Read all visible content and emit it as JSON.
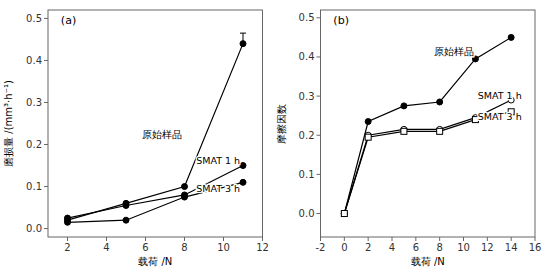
{
  "chart_data": [
    {
      "type": "line",
      "title": "(a)",
      "xlabel": "载荷 /N",
      "ylabel": "磨损量 /(mm³·h⁻¹)",
      "xlim": [
        1,
        12
      ],
      "ylim": [
        -0.02,
        0.52
      ],
      "xticks": [
        2,
        4,
        6,
        8,
        10,
        12
      ],
      "yticks": [
        {
          "value": 0.0,
          "label": "0.0"
        },
        0.1,
        0.2,
        0.3,
        0.4,
        0.5
      ],
      "grid": false,
      "x": [
        2,
        5,
        8,
        11
      ],
      "series": [
        {
          "color": "#000000",
          "marker": "circle",
          "values": [
            0.02,
            0.06,
            0.1,
            0.44
          ],
          "errors_up": [
            null,
            null,
            null,
            0.025
          ]
        },
        {
          "color": "#000000",
          "marker": "circle",
          "values": [
            0.025,
            0.055,
            0.08,
            0.15
          ]
        },
        {
          "color": "#000000",
          "marker": "circle",
          "values": [
            0.015,
            0.02,
            0.075,
            0.11
          ]
        }
      ],
      "annotations": [
        {
          "text": "原始样品",
          "x": 5.8,
          "y": 0.225
        },
        {
          "text": "SMAT 1 h",
          "x": 8.6,
          "y": 0.162
        },
        {
          "text": "SMAT 3 h",
          "x": 8.6,
          "y": 0.095
        }
      ]
    },
    {
      "type": "line",
      "title": "(b)",
      "xlabel": "载荷 /N",
      "ylabel": "摩擦因数",
      "xlim": [
        -2,
        16
      ],
      "ylim": [
        -0.06,
        0.52
      ],
      "xticks": [
        -2,
        0,
        2,
        4,
        6,
        8,
        10,
        12,
        14,
        16
      ],
      "yticks": [
        {
          "value": 0.0,
          "label": "0.0"
        },
        0.1,
        0.2,
        0.3,
        0.4,
        0.5
      ],
      "grid": false,
      "x": [
        0,
        2,
        5,
        8,
        11,
        14
      ],
      "series": [
        {
          "color": "#000000",
          "marker": "circle",
          "values": [
            0.0,
            0.235,
            0.275,
            0.285,
            0.395,
            0.45
          ]
        },
        {
          "color": "#000000",
          "marker": "circle-open",
          "values": [
            0.0,
            0.2,
            0.215,
            0.215,
            0.245,
            0.29
          ]
        },
        {
          "color": "#000000",
          "marker": "square-open",
          "values": [
            0.0,
            0.195,
            0.21,
            0.21,
            0.24,
            0.26
          ]
        }
      ],
      "annotations": [
        {
          "text": "原始样品",
          "x": 7.5,
          "y": 0.415
        },
        {
          "text": "SMAT 1 h",
          "x": 11.2,
          "y": 0.302
        },
        {
          "text": "SMAT 3 h",
          "x": 11.2,
          "y": 0.248
        }
      ]
    }
  ]
}
